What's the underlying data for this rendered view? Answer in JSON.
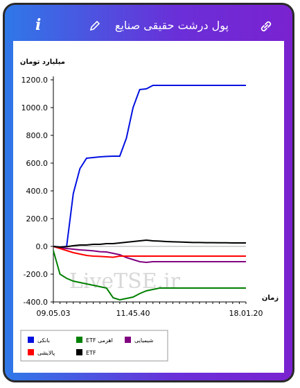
{
  "header": {
    "title": "پول درشت حقیقی صنایع",
    "info": "i"
  },
  "chart_data": {
    "type": "line",
    "y_label": "میلیارد تومان",
    "x_label": "زمان",
    "watermark": "LiveTSE.ir",
    "x": [
      "09.05.03",
      null,
      null,
      null,
      null,
      null,
      null,
      null,
      null,
      null,
      null,
      null,
      "11.45.40",
      null,
      null,
      null,
      null,
      null,
      null,
      null,
      null,
      null,
      null,
      null,
      null,
      null,
      null,
      null,
      null,
      "18.01.20"
    ],
    "ylim": [
      -400,
      1200
    ],
    "yticks": [
      {
        "value": -400,
        "label": "-400.0"
      },
      {
        "value": -200,
        "label": "-200.0"
      },
      {
        "value": 0,
        "label": "0.0"
      },
      {
        "value": 200,
        "label": "200.0"
      },
      {
        "value": 400,
        "label": "400.0"
      },
      {
        "value": 600,
        "label": "600.0"
      },
      {
        "value": 800,
        "label": "800.0"
      },
      {
        "value": 1000,
        "label": "1000.0"
      },
      {
        "value": 1200,
        "label": "1200.0"
      }
    ],
    "series": [
      {
        "name": "بانکی",
        "color": "#0010e0",
        "values": [
          0,
          -5,
          0,
          380,
          560,
          635,
          640,
          645,
          648,
          650,
          650,
          780,
          1000,
          1130,
          1135,
          1160,
          1160,
          1160,
          1160,
          1160,
          1160,
          1160,
          1160,
          1160,
          1160,
          1160,
          1160,
          1160,
          1160,
          1160
        ]
      },
      {
        "name": "ETF اهرمی",
        "color": "#008000",
        "values": [
          -30,
          -200,
          -230,
          -250,
          -260,
          -270,
          -280,
          -290,
          -300,
          -370,
          -385,
          -375,
          -365,
          -340,
          -320,
          -310,
          -300,
          -300,
          -300,
          -300,
          -300,
          -300,
          -300,
          -300,
          -300,
          -300,
          -300,
          -300,
          -300,
          -300
        ]
      },
      {
        "name": "شیمیایی",
        "color": "#800080",
        "values": [
          0,
          -10,
          -15,
          -20,
          -25,
          -28,
          -32,
          -38,
          -40,
          -50,
          -60,
          -80,
          -95,
          -110,
          -115,
          -110,
          -110,
          -110,
          -110,
          -110,
          -110,
          -110,
          -110,
          -110,
          -110,
          -110,
          -110,
          -110,
          -110,
          -110
        ]
      },
      {
        "name": "پالایشی",
        "color": "#ff0000",
        "values": [
          0,
          -15,
          -30,
          -45,
          -55,
          -65,
          -70,
          -72,
          -75,
          -78,
          -70,
          -70,
          -70,
          -70,
          -70,
          -70,
          -70,
          -70,
          -70,
          -70,
          -70,
          -70,
          -70,
          -70,
          -70,
          -70,
          -70,
          -70,
          -70,
          -70
        ]
      },
      {
        "name": "ETF",
        "color": "#000000",
        "values": [
          0,
          -5,
          -2,
          5,
          10,
          10,
          15,
          15,
          20,
          20,
          25,
          30,
          35,
          40,
          45,
          40,
          38,
          35,
          33,
          32,
          30,
          28,
          28,
          27,
          27,
          26,
          26,
          25,
          25,
          25
        ]
      }
    ]
  }
}
